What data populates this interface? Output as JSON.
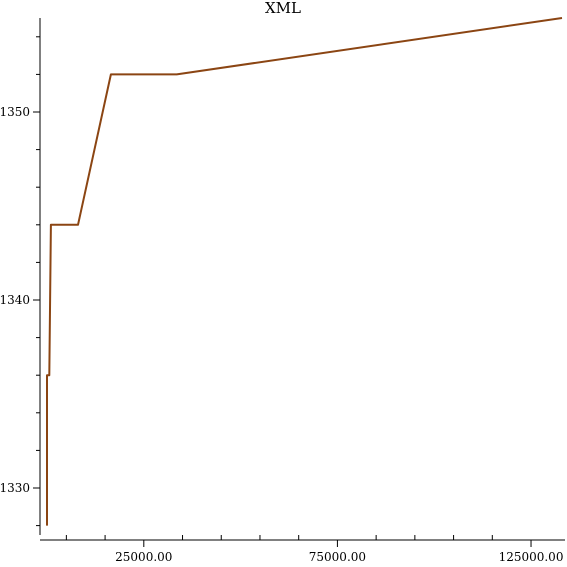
{
  "chart_data": {
    "type": "line",
    "title": "XML",
    "xlabel": "",
    "ylabel": "",
    "xlim": [
      0,
      133000
    ],
    "ylim": [
      1327.5,
      1355
    ],
    "x_major_ticks": [
      25000,
      75000,
      125000
    ],
    "x_minor_ticks": [
      5000,
      15000,
      35000,
      45000,
      55000,
      65000,
      85000,
      95000,
      105000,
      115000
    ],
    "x_tick_labels": [
      "25000.00",
      "75000.00",
      "125000.00"
    ],
    "y_major_ticks": [
      1330,
      1340,
      1350
    ],
    "y_minor_ticks": [
      1328,
      1332,
      1334,
      1336,
      1338,
      1342,
      1344,
      1346,
      1348,
      1352,
      1354
    ],
    "y_tick_labels": [
      "1330",
      "1340",
      "1350"
    ],
    "grid": false,
    "series": [
      {
        "color": "#8b4513",
        "x": [
          0,
          0,
          200,
          600,
          1000,
          8000,
          16500,
          33500,
          133000
        ],
        "y": [
          1328,
          1336,
          1336,
          1336,
          1344,
          1344,
          1352,
          1352,
          1355
        ]
      }
    ]
  }
}
